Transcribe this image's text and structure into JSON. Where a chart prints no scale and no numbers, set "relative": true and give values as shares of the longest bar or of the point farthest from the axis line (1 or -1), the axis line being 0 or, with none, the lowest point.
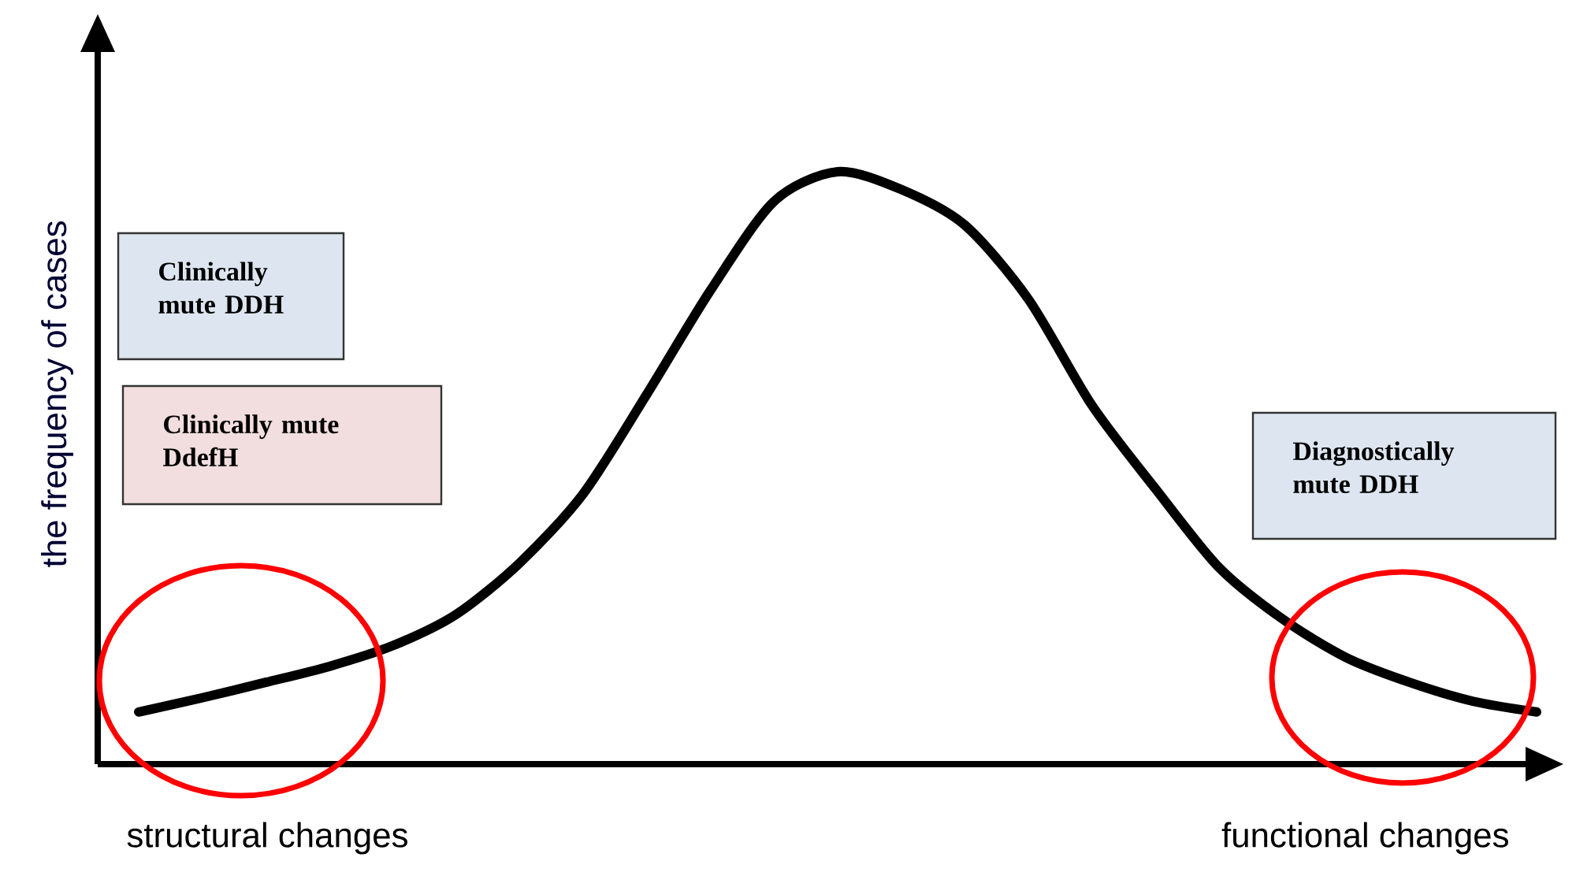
{
  "chart_data": {
    "type": "line",
    "relative": true,
    "ylabel": "the frequency of cases",
    "categories": [
      null,
      null,
      null,
      null,
      null,
      null,
      null,
      null,
      null,
      null,
      null,
      null,
      null,
      null,
      null,
      null,
      null,
      null,
      null,
      null,
      null,
      null,
      null
    ],
    "series": [
      {
        "color": "#000000",
        "values": [
          0.088,
          0.112,
          0.138,
          0.165,
          0.2,
          0.253,
          0.34,
          0.457,
          0.625,
          0.8,
          0.95,
          1.0,
          0.97,
          0.91,
          0.785,
          0.606,
          0.465,
          0.332,
          0.245,
          0.18,
          0.138,
          0.106,
          0.088
        ]
      }
    ],
    "marker": "none",
    "line_style": "solid",
    "annotations": [
      "Clinically mute DDH",
      "Clinically mute DdefH",
      "Diagnostically mute DDH",
      "structural  changes",
      "functional changes"
    ]
  }
}
